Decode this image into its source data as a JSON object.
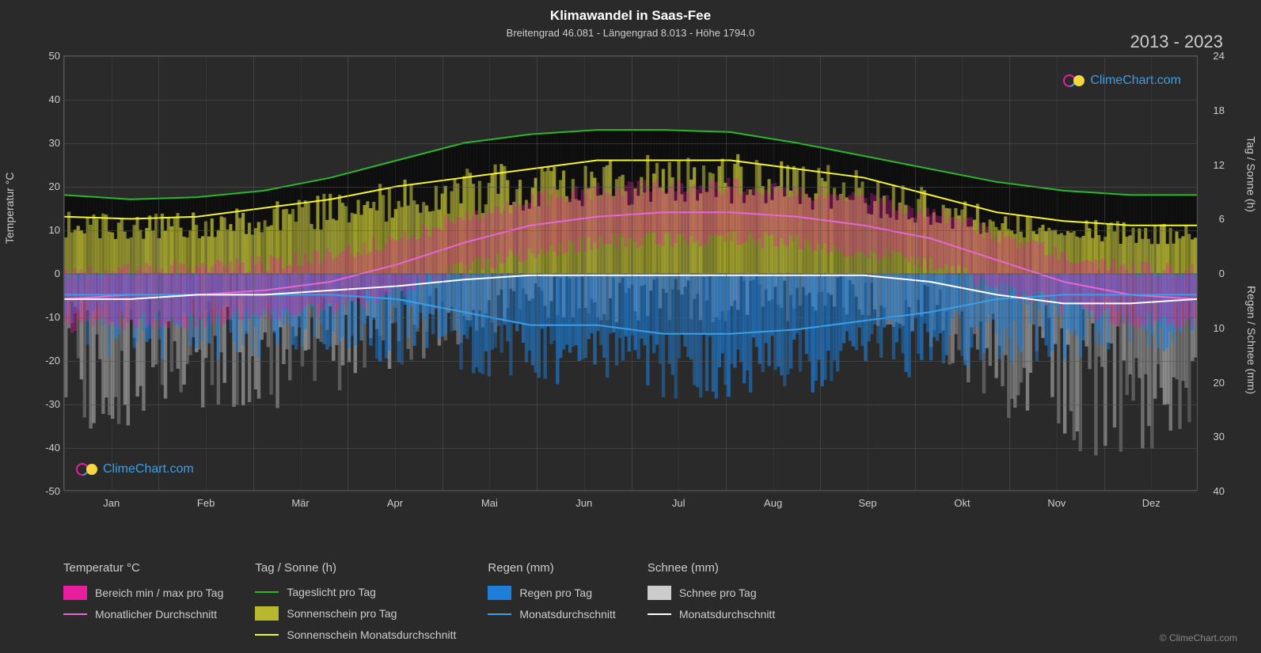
{
  "title": "Klimawandel in Saas-Fee",
  "subtitle": "Breitengrad 46.081 - Längengrad 8.013 - Höhe 1794.0",
  "year_range": "2013 - 2023",
  "copyright": "© ClimeChart.com",
  "watermark_text": "ClimeChart.com",
  "axes": {
    "y_left": {
      "label": "Temperatur °C",
      "min": -50,
      "max": 50,
      "ticks": [
        -50,
        -40,
        -30,
        -20,
        -10,
        0,
        10,
        20,
        30,
        40,
        50
      ]
    },
    "y_right_top": {
      "label": "Tag / Sonne (h)",
      "min": 0,
      "max": 24,
      "ticks": [
        0,
        6,
        12,
        18,
        24
      ]
    },
    "y_right_bottom": {
      "label": "Regen / Schnee (mm)",
      "min": 0,
      "max": 40,
      "ticks": [
        0,
        10,
        20,
        30,
        40
      ]
    },
    "x": {
      "labels": [
        "Jan",
        "Feb",
        "Mär",
        "Apr",
        "Mai",
        "Jun",
        "Jul",
        "Aug",
        "Sep",
        "Okt",
        "Nov",
        "Dez"
      ]
    }
  },
  "colors": {
    "background": "#2a2a2a",
    "grid": "#555555",
    "text": "#cccccc",
    "temp_range": "#e91e9e",
    "temp_avg": "#e667d6",
    "daylight": "#2ab82a",
    "sunshine_bar": "#b8b82e",
    "sunshine_avg": "#f5f52e",
    "rain_bar": "#1e7ed8",
    "rain_avg": "#3c9ee5",
    "snow_bar": "#cccccc",
    "snow_avg": "#ffffff"
  },
  "lines": {
    "daylight": [
      18,
      17,
      17.5,
      19,
      22,
      26,
      30,
      32,
      33,
      33,
      32.5,
      30,
      27,
      24,
      21,
      19,
      18,
      18
    ],
    "sunshine_avg": [
      13,
      12.5,
      13,
      15,
      17,
      20,
      22,
      24,
      26,
      26,
      26,
      24,
      22,
      18,
      14,
      12,
      11,
      11
    ],
    "temp_avg": [
      -6,
      -5,
      -5,
      -4,
      -2,
      2,
      7,
      11,
      13,
      14,
      14,
      13,
      11,
      8,
      3,
      -2,
      -5,
      -6
    ],
    "rain_avg": [
      -5,
      -5,
      -5,
      -5,
      -5,
      -6,
      -9,
      -12,
      -12,
      -14,
      -14,
      -13,
      -11,
      -9,
      -6,
      -5,
      -5,
      -5
    ],
    "snow_avg": [
      -6,
      -6,
      -5,
      -5,
      -4,
      -3,
      -1.5,
      -0.5,
      -0.5,
      -0.5,
      -0.5,
      -0.5,
      -0.5,
      -2,
      -5,
      -7,
      -7,
      -6
    ]
  },
  "legend": {
    "groups": [
      {
        "title": "Temperatur °C",
        "items": [
          {
            "type": "swatch",
            "color": "#e91e9e",
            "label": "Bereich min / max pro Tag"
          },
          {
            "type": "line",
            "color": "#e667d6",
            "label": "Monatlicher Durchschnitt"
          }
        ]
      },
      {
        "title": "Tag / Sonne (h)",
        "items": [
          {
            "type": "line",
            "color": "#2ab82a",
            "label": "Tageslicht pro Tag"
          },
          {
            "type": "swatch",
            "color": "#b8b82e",
            "label": "Sonnenschein pro Tag"
          },
          {
            "type": "line",
            "color": "#f5f52e",
            "label": "Sonnenschein Monatsdurchschnitt"
          }
        ]
      },
      {
        "title": "Regen (mm)",
        "items": [
          {
            "type": "swatch",
            "color": "#1e7ed8",
            "label": "Regen pro Tag"
          },
          {
            "type": "line",
            "color": "#3c9ee5",
            "label": "Monatsdurchschnitt"
          }
        ]
      },
      {
        "title": "Schnee (mm)",
        "items": [
          {
            "type": "swatch",
            "color": "#cccccc",
            "label": "Schnee pro Tag"
          },
          {
            "type": "line",
            "color": "#ffffff",
            "label": "Monatsdurchschnitt"
          }
        ]
      }
    ]
  },
  "styling": {
    "title_fontsize": 17,
    "subtitle_fontsize": 13,
    "tick_fontsize": 13,
    "legend_fontsize": 14,
    "line_width": 2
  }
}
